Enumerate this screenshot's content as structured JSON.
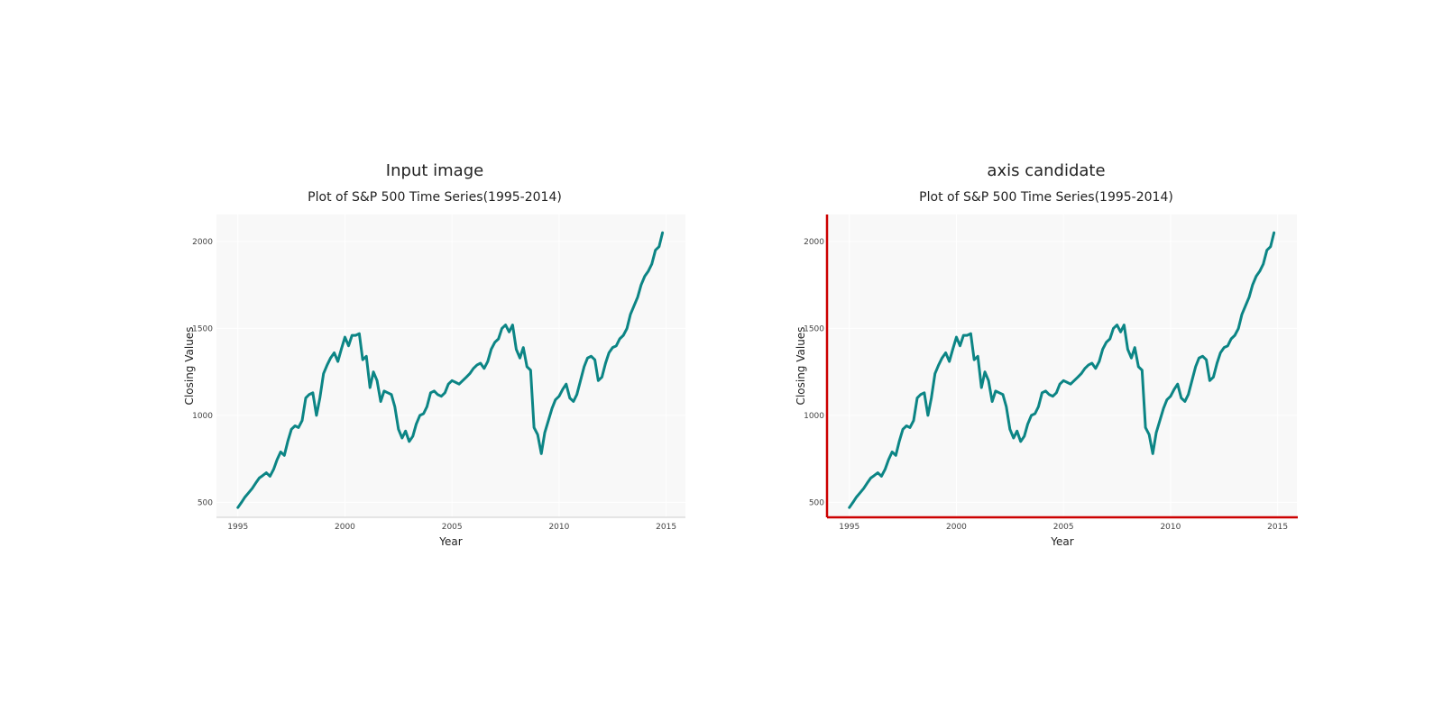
{
  "panels": [
    {
      "title": "Input image"
    },
    {
      "title": "axis candidate"
    }
  ],
  "colors": {
    "line": "#0c8585",
    "plot_background": "#f8f8f8",
    "grid": "#ffffff",
    "axis_line": "#cccccc",
    "highlight_axis": "#cc0000"
  },
  "chart_data": [
    {
      "type": "line",
      "title": "Plot of S&P 500 Time Series(1995-2014)",
      "xlabel": "Year",
      "ylabel": "Closing Values",
      "xlim": [
        1994.0,
        2015.9
      ],
      "ylim": [
        414,
        2155
      ],
      "xticks": [
        1995,
        2000,
        2005,
        2010,
        2015
      ],
      "yticks": [
        500,
        1000,
        1500,
        2000
      ],
      "grid": true,
      "x": [
        1995.0,
        1995.17,
        1995.33,
        1995.5,
        1995.67,
        1995.83,
        1996.0,
        1996.17,
        1996.33,
        1996.5,
        1996.67,
        1996.83,
        1997.0,
        1997.17,
        1997.33,
        1997.5,
        1997.67,
        1997.83,
        1998.0,
        1998.17,
        1998.33,
        1998.5,
        1998.67,
        1998.83,
        1999.0,
        1999.17,
        1999.33,
        1999.5,
        1999.67,
        1999.83,
        2000.0,
        2000.17,
        2000.33,
        2000.5,
        2000.67,
        2000.83,
        2001.0,
        2001.17,
        2001.33,
        2001.5,
        2001.67,
        2001.83,
        2002.0,
        2002.17,
        2002.33,
        2002.5,
        2002.67,
        2002.83,
        2003.0,
        2003.17,
        2003.33,
        2003.5,
        2003.67,
        2003.83,
        2004.0,
        2004.17,
        2004.33,
        2004.5,
        2004.67,
        2004.83,
        2005.0,
        2005.17,
        2005.33,
        2005.5,
        2005.67,
        2005.83,
        2006.0,
        2006.17,
        2006.33,
        2006.5,
        2006.67,
        2006.83,
        2007.0,
        2007.17,
        2007.33,
        2007.5,
        2007.67,
        2007.83,
        2008.0,
        2008.17,
        2008.33,
        2008.5,
        2008.67,
        2008.83,
        2009.0,
        2009.17,
        2009.33,
        2009.5,
        2009.67,
        2009.83,
        2010.0,
        2010.17,
        2010.33,
        2010.5,
        2010.67,
        2010.83,
        2011.0,
        2011.17,
        2011.33,
        2011.5,
        2011.67,
        2011.83,
        2012.0,
        2012.17,
        2012.33,
        2012.5,
        2012.67,
        2012.83,
        2013.0,
        2013.17,
        2013.33,
        2013.5,
        2013.67,
        2013.83,
        2014.0,
        2014.17,
        2014.33,
        2014.5,
        2014.67,
        2014.83
      ],
      "series": [
        {
          "values": [
            470,
            500,
            530,
            555,
            580,
            610,
            640,
            655,
            670,
            650,
            690,
            745,
            790,
            770,
            850,
            920,
            940,
            930,
            970,
            1100,
            1120,
            1130,
            1000,
            1100,
            1240,
            1290,
            1330,
            1360,
            1310,
            1380,
            1450,
            1400,
            1460,
            1460,
            1470,
            1320,
            1340,
            1160,
            1250,
            1200,
            1080,
            1140,
            1130,
            1120,
            1050,
            920,
            870,
            910,
            850,
            880,
            950,
            1000,
            1010,
            1050,
            1130,
            1140,
            1120,
            1110,
            1130,
            1180,
            1200,
            1190,
            1180,
            1200,
            1220,
            1240,
            1270,
            1290,
            1300,
            1270,
            1310,
            1380,
            1420,
            1440,
            1500,
            1520,
            1480,
            1520,
            1380,
            1330,
            1390,
            1280,
            1260,
            930,
            890,
            780,
            900,
            970,
            1040,
            1090,
            1110,
            1150,
            1180,
            1100,
            1080,
            1120,
            1200,
            1280,
            1330,
            1340,
            1320,
            1200,
            1220,
            1300,
            1360,
            1390,
            1400,
            1440,
            1460,
            1500,
            1580,
            1630,
            1680,
            1750,
            1800,
            1830,
            1870,
            1950,
            1970,
            2050
          ]
        }
      ]
    },
    {
      "type": "line",
      "title": "Plot of S&P 500 Time Series(1995-2014)",
      "xlabel": "Year",
      "ylabel": "Closing Values",
      "xlim": [
        1994.0,
        2015.9
      ],
      "ylim": [
        414,
        2155
      ],
      "xticks": [
        1995,
        2000,
        2005,
        2010,
        2015
      ],
      "yticks": [
        500,
        1000,
        1500,
        2000
      ],
      "grid": true,
      "axis_highlight": "left-bottom",
      "x": [
        1995.0,
        1995.17,
        1995.33,
        1995.5,
        1995.67,
        1995.83,
        1996.0,
        1996.17,
        1996.33,
        1996.5,
        1996.67,
        1996.83,
        1997.0,
        1997.17,
        1997.33,
        1997.5,
        1997.67,
        1997.83,
        1998.0,
        1998.17,
        1998.33,
        1998.5,
        1998.67,
        1998.83,
        1999.0,
        1999.17,
        1999.33,
        1999.5,
        1999.67,
        1999.83,
        2000.0,
        2000.17,
        2000.33,
        2000.5,
        2000.67,
        2000.83,
        2001.0,
        2001.17,
        2001.33,
        2001.5,
        2001.67,
        2001.83,
        2002.0,
        2002.17,
        2002.33,
        2002.5,
        2002.67,
        2002.83,
        2003.0,
        2003.17,
        2003.33,
        2003.5,
        2003.67,
        2003.83,
        2004.0,
        2004.17,
        2004.33,
        2004.5,
        2004.67,
        2004.83,
        2005.0,
        2005.17,
        2005.33,
        2005.5,
        2005.67,
        2005.83,
        2006.0,
        2006.17,
        2006.33,
        2006.5,
        2006.67,
        2006.83,
        2007.0,
        2007.17,
        2007.33,
        2007.5,
        2007.67,
        2007.83,
        2008.0,
        2008.17,
        2008.33,
        2008.5,
        2008.67,
        2008.83,
        2009.0,
        2009.17,
        2009.33,
        2009.5,
        2009.67,
        2009.83,
        2010.0,
        2010.17,
        2010.33,
        2010.5,
        2010.67,
        2010.83,
        2011.0,
        2011.17,
        2011.33,
        2011.5,
        2011.67,
        2011.83,
        2012.0,
        2012.17,
        2012.33,
        2012.5,
        2012.67,
        2012.83,
        2013.0,
        2013.17,
        2013.33,
        2013.5,
        2013.67,
        2013.83,
        2014.0,
        2014.17,
        2014.33,
        2014.5,
        2014.67,
        2014.83
      ],
      "series": [
        {
          "values": [
            470,
            500,
            530,
            555,
            580,
            610,
            640,
            655,
            670,
            650,
            690,
            745,
            790,
            770,
            850,
            920,
            940,
            930,
            970,
            1100,
            1120,
            1130,
            1000,
            1100,
            1240,
            1290,
            1330,
            1360,
            1310,
            1380,
            1450,
            1400,
            1460,
            1460,
            1470,
            1320,
            1340,
            1160,
            1250,
            1200,
            1080,
            1140,
            1130,
            1120,
            1050,
            920,
            870,
            910,
            850,
            880,
            950,
            1000,
            1010,
            1050,
            1130,
            1140,
            1120,
            1110,
            1130,
            1180,
            1200,
            1190,
            1180,
            1200,
            1220,
            1240,
            1270,
            1290,
            1300,
            1270,
            1310,
            1380,
            1420,
            1440,
            1500,
            1520,
            1480,
            1520,
            1380,
            1330,
            1390,
            1280,
            1260,
            930,
            890,
            780,
            900,
            970,
            1040,
            1090,
            1110,
            1150,
            1180,
            1100,
            1080,
            1120,
            1200,
            1280,
            1330,
            1340,
            1320,
            1200,
            1220,
            1300,
            1360,
            1390,
            1400,
            1440,
            1460,
            1500,
            1580,
            1630,
            1680,
            1750,
            1800,
            1830,
            1870,
            1950,
            1970,
            2050
          ]
        }
      ]
    }
  ]
}
